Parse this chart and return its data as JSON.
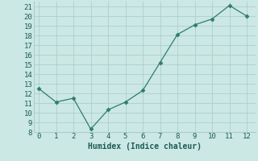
{
  "x": [
    0,
    1,
    2,
    3,
    4,
    5,
    6,
    7,
    8,
    9,
    10,
    11,
    12
  ],
  "y": [
    12.5,
    11.1,
    11.5,
    8.3,
    10.3,
    11.1,
    12.3,
    15.2,
    18.1,
    19.1,
    19.7,
    21.1,
    20.0
  ],
  "xlim": [
    -0.3,
    12.5
  ],
  "ylim": [
    8,
    21.5
  ],
  "yticks": [
    8,
    9,
    10,
    11,
    12,
    13,
    14,
    15,
    16,
    17,
    18,
    19,
    20,
    21
  ],
  "xticks": [
    0,
    1,
    2,
    3,
    4,
    5,
    6,
    7,
    8,
    9,
    10,
    11,
    12
  ],
  "xlabel": "Humidex (Indice chaleur)",
  "line_color": "#2e7d6e",
  "marker": "D",
  "marker_size": 2.5,
  "bg_color": "#cce8e4",
  "grid_color": "#aacfcb",
  "font_color": "#1a5c54",
  "xlabel_fontsize": 7,
  "tick_fontsize": 6.5
}
